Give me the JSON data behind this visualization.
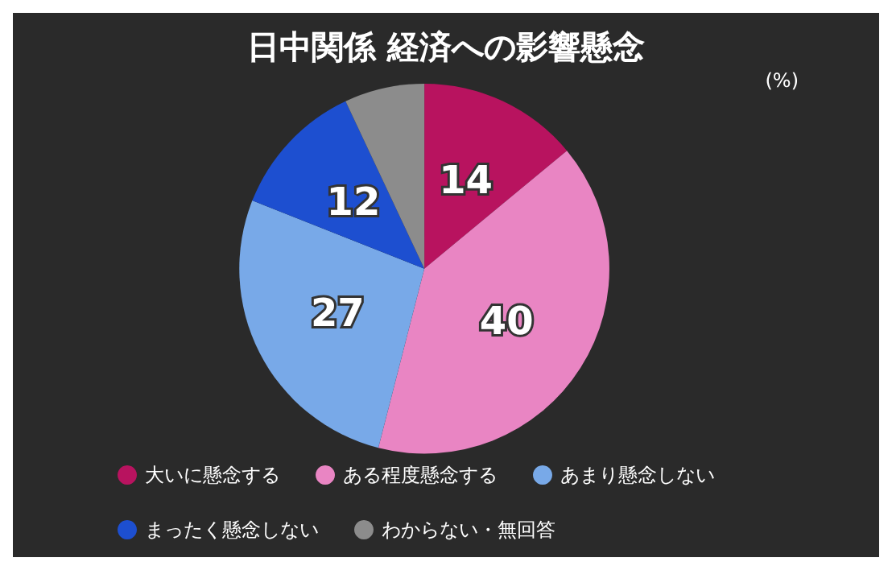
{
  "chart_data": {
    "type": "pie",
    "title": "日中関係 経済への影響懸念",
    "categories": [
      "大いに懸念する",
      "ある程度懸念する",
      "あまり懸念しない",
      "まったく懸念しない",
      "わからない・無回答"
    ],
    "values": [
      14,
      40,
      27,
      12,
      7
    ],
    "value_labels": [
      "14",
      "40",
      "27",
      "12",
      null
    ],
    "colors": [
      "#b8135f",
      "#e985c3",
      "#78a9e8",
      "#1d4fd0",
      "#8c8c8c"
    ],
    "annotations": [
      "(%)"
    ],
    "legend": "bottom"
  }
}
